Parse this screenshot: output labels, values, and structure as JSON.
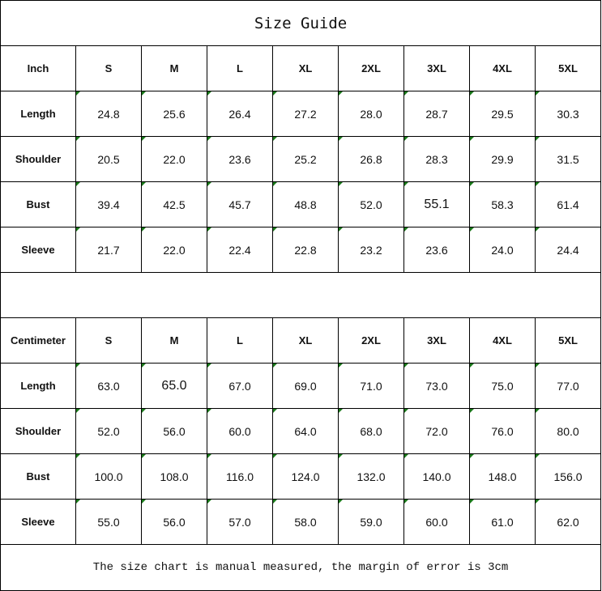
{
  "title": "Size Guide",
  "sizes": [
    "S",
    "M",
    "L",
    "XL",
    "2XL",
    "3XL",
    "4XL",
    "5XL"
  ],
  "inch": {
    "unit_label": "Inch",
    "rows": [
      {
        "label": "Length",
        "values": [
          "24.8",
          "25.6",
          "26.4",
          "27.2",
          "28.0",
          "28.7",
          "29.5",
          "30.3"
        ]
      },
      {
        "label": "Shoulder",
        "values": [
          "20.5",
          "22.0",
          "23.6",
          "25.2",
          "26.8",
          "28.3",
          "29.9",
          "31.5"
        ]
      },
      {
        "label": "Bust",
        "values": [
          "39.4",
          "42.5",
          "45.7",
          "48.8",
          "52.0",
          "55.1",
          "58.3",
          "61.4"
        ]
      },
      {
        "label": "Sleeve",
        "values": [
          "21.7",
          "22.0",
          "22.4",
          "22.8",
          "23.2",
          "23.6",
          "24.0",
          "24.4"
        ]
      }
    ]
  },
  "cm": {
    "unit_label": "Centimeter",
    "rows": [
      {
        "label": "Length",
        "values": [
          "63.0",
          "65.0",
          "67.0",
          "69.0",
          "71.0",
          "73.0",
          "75.0",
          "77.0"
        ]
      },
      {
        "label": "Shoulder",
        "values": [
          "52.0",
          "56.0",
          "60.0",
          "64.0",
          "68.0",
          "72.0",
          "76.0",
          "80.0"
        ]
      },
      {
        "label": "Bust",
        "values": [
          "100.0",
          "108.0",
          "116.0",
          "124.0",
          "132.0",
          "140.0",
          "148.0",
          "156.0"
        ]
      },
      {
        "label": "Sleeve",
        "values": [
          "55.0",
          "56.0",
          "57.0",
          "58.0",
          "59.0",
          "60.0",
          "61.0",
          "62.0"
        ]
      }
    ]
  },
  "note": "The size chart is manual measured, the margin of error is 3cm",
  "colors": {
    "text_indicator": "#1a7a1a",
    "border": "#000000"
  }
}
